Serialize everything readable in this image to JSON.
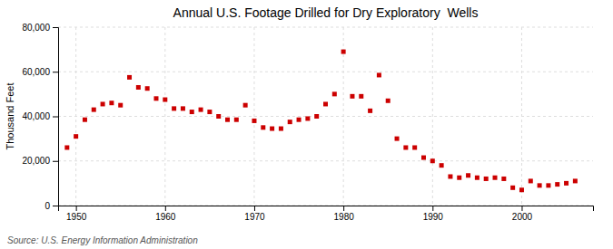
{
  "chart_data": {
    "type": "scatter",
    "title": "Annual U.S. Footage Drilled for Dry Exploratory  Wells",
    "y_label": "Thousand Feet",
    "source": "Source: U.S. Energy Information Administration",
    "color": "#cc0000",
    "marker": "square",
    "grid": true,
    "xlim": [
      1948,
      2008
    ],
    "xticks": [
      1950,
      1960,
      1970,
      1980,
      1990,
      2000
    ],
    "ylim": [
      0,
      80000
    ],
    "yticks": [
      0,
      {
        "value": 20000,
        "label": "20,000"
      },
      {
        "value": 40000,
        "label": "40,000"
      },
      {
        "value": 60000,
        "label": "60,000"
      },
      {
        "value": 80000,
        "label": "80,000"
      }
    ],
    "x": [
      1949,
      1950,
      1951,
      1952,
      1953,
      1954,
      1955,
      1956,
      1957,
      1958,
      1959,
      1960,
      1961,
      1962,
      1963,
      1964,
      1965,
      1966,
      1967,
      1968,
      1969,
      1970,
      1971,
      1972,
      1973,
      1974,
      1975,
      1976,
      1977,
      1978,
      1979,
      1980,
      1981,
      1982,
      1983,
      1984,
      1985,
      1986,
      1987,
      1988,
      1989,
      1990,
      1991,
      1992,
      1993,
      1994,
      1995,
      1996,
      1997,
      1998,
      1999,
      2000,
      2001,
      2002,
      2003,
      2004,
      2005,
      2006
    ],
    "values": [
      26000,
      31000,
      38500,
      43000,
      45500,
      46000,
      45000,
      57500,
      53000,
      52500,
      48000,
      47500,
      43500,
      43500,
      42000,
      43000,
      42000,
      40000,
      38500,
      38500,
      45000,
      38000,
      35000,
      34500,
      34500,
      37500,
      38500,
      39000,
      40000,
      45500,
      50000,
      69000,
      49000,
      49000,
      42500,
      58500,
      47000,
      30000,
      26000,
      26000,
      21500,
      20000,
      18000,
      13000,
      12500,
      13500,
      12500,
      12000,
      12500,
      12000,
      8000,
      7000,
      11000,
      9000,
      9000,
      9500,
      10000,
      11000
    ]
  }
}
